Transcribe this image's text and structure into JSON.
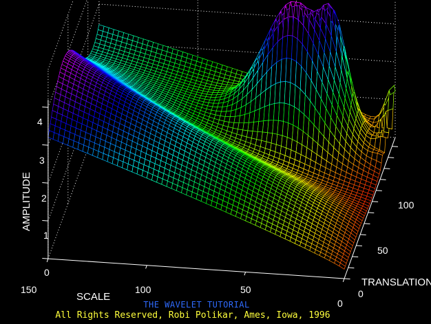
{
  "chart_data": {
    "type": "surface",
    "zlabel": "AMPLITUDE",
    "xlabel": "SCALE",
    "ylabel": "TRANSLATION",
    "zlim": [
      0,
      4
    ],
    "z_ticks": [
      "0",
      "1",
      "2",
      "3",
      "4"
    ],
    "scale_ticks": [
      "150",
      "100",
      "50",
      "0"
    ],
    "translation_ticks": [
      "0",
      "50",
      "100"
    ],
    "grid": true,
    "colormap": "hsv"
  },
  "captions": {
    "title": "THE WAVELET TUTORIAL",
    "copyright": "All Rights Reserved, Robi Polikar, Ames, Iowa, 1996"
  },
  "colors": {
    "background": "#000000",
    "title": "#2f6bff",
    "copyright": "#ffff3c"
  }
}
